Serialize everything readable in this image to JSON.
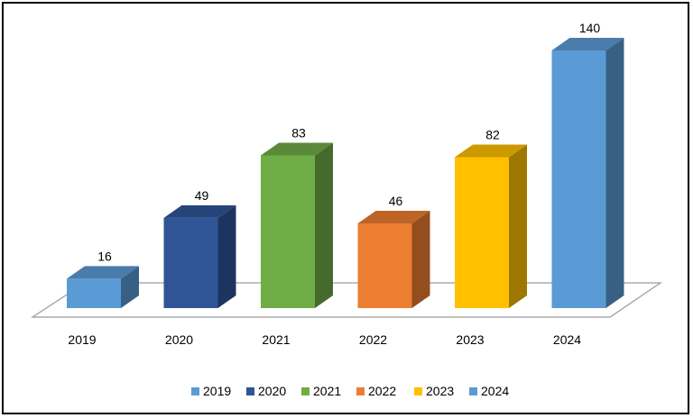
{
  "chart_data": {
    "type": "bar",
    "title": "",
    "xlabel": "",
    "ylabel": "",
    "ylim": [
      0,
      150
    ],
    "grid": false,
    "legend_position": "bottom",
    "categories": [
      "2019",
      "2020",
      "2021",
      "2022",
      "2023",
      "2024"
    ],
    "values": [
      16,
      49,
      83,
      46,
      82,
      140
    ],
    "colors": [
      "#5B9BD5",
      "#2F5597",
      "#70AD47",
      "#ED7D31",
      "#FFC000",
      "#5B9BD5"
    ],
    "legend": [
      "2019",
      "2020",
      "2021",
      "2022",
      "2023",
      "2024"
    ]
  }
}
